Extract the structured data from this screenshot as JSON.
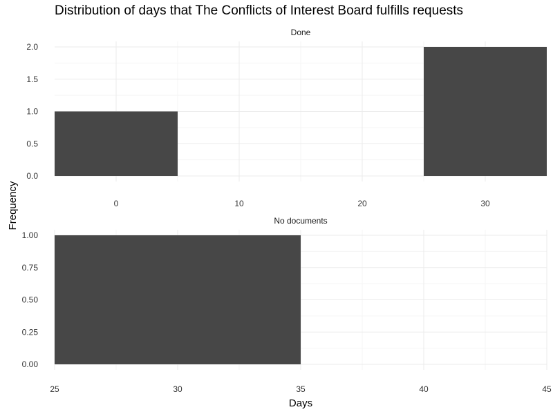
{
  "chart_data": {
    "type": "bar",
    "title": "Distribution of days that The Conflicts of Interest Board fulfills requests",
    "xlabel": "Days",
    "ylabel": "Frequency",
    "bar_color": "#474747",
    "grid": true,
    "facets": [
      {
        "label": "Done",
        "xlim": [
          -5,
          35
        ],
        "ylim": [
          0,
          2
        ],
        "x_ticks": [
          "0",
          "10",
          "20",
          "30"
        ],
        "y_ticks": [
          "0.0",
          "0.5",
          "1.0",
          "1.5",
          "2.0"
        ],
        "bars": [
          {
            "x_start": -5,
            "x_end": 5,
            "value": 1
          },
          {
            "x_start": 25,
            "x_end": 35,
            "value": 2
          }
        ]
      },
      {
        "label": "No documents",
        "xlim": [
          25,
          45
        ],
        "ylim": [
          0,
          1
        ],
        "x_ticks": [
          "25",
          "30",
          "35",
          "40",
          "45"
        ],
        "y_ticks": [
          "0.00",
          "0.25",
          "0.50",
          "0.75",
          "1.00"
        ],
        "bars": [
          {
            "x_start": 25,
            "x_end": 35,
            "value": 1
          }
        ]
      }
    ]
  }
}
